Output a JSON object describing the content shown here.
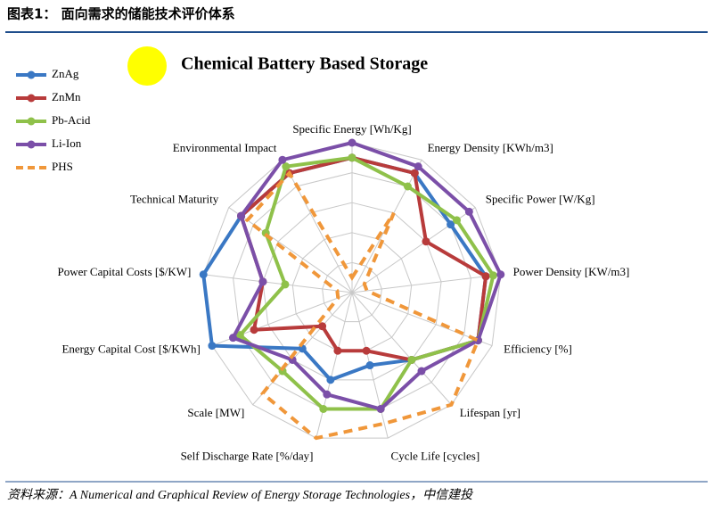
{
  "header": {
    "title": "图表1：  面向需求的储能技术评价体系"
  },
  "chart_data": {
    "type": "radar",
    "title": "Chemical Battery Based Storage",
    "categories": [
      "Specific Energy [Wh/Kg]",
      "Energy Density [KWh/m3]",
      "Specific Power [W/Kg]",
      "Power Density [KW/m3]",
      "Efficiency [%]",
      "Lifespan [yr]",
      "Cycle Life [cycles]",
      "Self Discharge Rate [%/day]",
      "Scale [MW]",
      "Energy Capital Cost [$/KWh]",
      "Power Capital Costs [$/KW]",
      "Technical Maturity",
      "Environmental Impact"
    ],
    "rlim": [
      0,
      10
    ],
    "rticks": [
      2,
      4,
      6,
      8,
      10
    ],
    "series": [
      {
        "name": "ZnAg",
        "color": "#3a78c4",
        "style": "solid",
        "values": [
          9,
          9,
          8,
          9,
          9,
          6,
          5,
          6,
          5,
          10,
          10,
          9,
          9
        ]
      },
      {
        "name": "ZnMn",
        "color": "#b83b3b",
        "style": "solid",
        "values": [
          9,
          9,
          6,
          9,
          9,
          6,
          4,
          4,
          3,
          7,
          6,
          9,
          9
        ]
      },
      {
        "name": "Pb-Acid",
        "color": "#8fc14a",
        "style": "solid",
        "values": [
          9,
          8,
          8.5,
          9.5,
          9,
          6,
          8,
          8,
          7,
          8,
          4.5,
          7,
          9.5
        ]
      },
      {
        "name": "Li-Ion",
        "color": "#7b4fa8",
        "style": "solid",
        "values": [
          10,
          9.5,
          9.5,
          10,
          9,
          7,
          8,
          7,
          6,
          8.5,
          6,
          9,
          10
        ]
      },
      {
        "name": "PHS",
        "color": "#f0973a",
        "style": "dashed",
        "values": [
          1,
          6,
          1,
          1,
          9,
          10,
          9,
          10,
          9,
          1,
          1,
          8.5,
          9
        ]
      }
    ]
  },
  "source": "资料来源：A Numerical and Graphical Review of Energy Storage Technologies，中信建投"
}
